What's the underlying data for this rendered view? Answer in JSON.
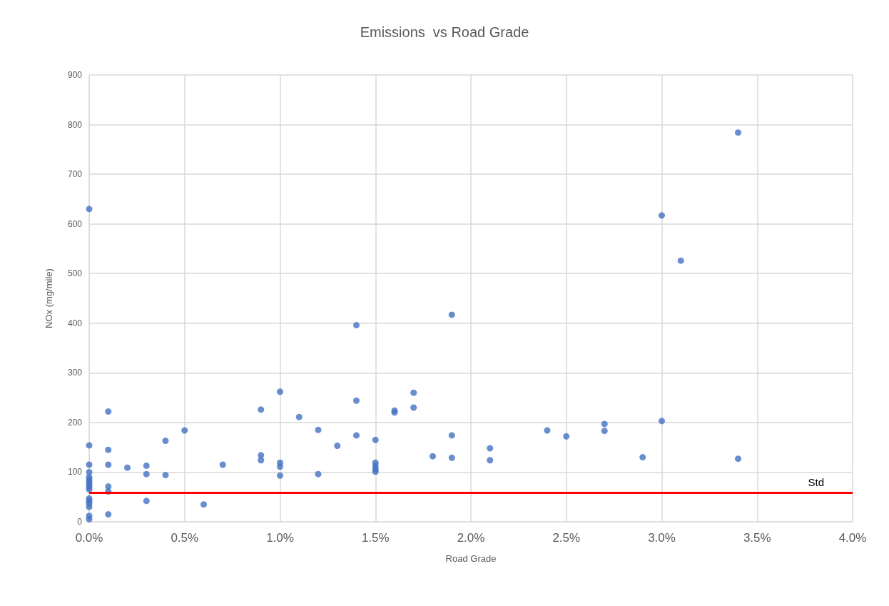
{
  "chart_data": {
    "type": "scatter",
    "title": "Emissions  vs Road Grade",
    "xlabel": "Road Grade",
    "ylabel": "NOx (mg/mile)",
    "series": [
      {
        "color": "#4472c4",
        "x": [
          0,
          0,
          0,
          0,
          0,
          0,
          0,
          0,
          0,
          0,
          0,
          0,
          0,
          0,
          0,
          0,
          0.1,
          0.1,
          0.1,
          0.1,
          0.1,
          0.1,
          0.2,
          0.3,
          0.3,
          0.3,
          0.4,
          0.4,
          0.5,
          0.6,
          0.7,
          0.9,
          0.9,
          0.9,
          1.0,
          1.0,
          1.0,
          1.0,
          1.1,
          1.2,
          1.2,
          1.3,
          1.4,
          1.4,
          1.4,
          1.5,
          1.5,
          1.5,
          1.5,
          1.5,
          1.6,
          1.6,
          1.7,
          1.7,
          1.8,
          1.9,
          1.9,
          1.9,
          2.1,
          2.1,
          2.4,
          2.5,
          2.7,
          2.7,
          2.9,
          3.0,
          3.0,
          3.1,
          3.4,
          3.4
        ],
        "values": [
          630,
          154,
          115,
          100,
          90,
          85,
          80,
          75,
          70,
          65,
          47,
          42,
          37,
          30,
          12,
          5,
          222,
          145,
          115,
          71,
          61,
          15,
          109,
          113,
          96,
          42,
          163,
          94,
          184,
          35,
          115,
          226,
          134,
          124,
          262,
          119,
          111,
          93,
          211,
          185,
          96,
          153,
          396,
          244,
          174,
          165,
          119,
          112,
          106,
          101,
          224,
          220,
          260,
          230,
          132,
          417,
          174,
          129,
          148,
          124,
          184,
          172,
          197,
          183,
          130,
          617,
          203,
          526,
          784,
          127
        ]
      }
    ],
    "xlim": [
      0,
      4
    ],
    "xticks": [
      {
        "value": 0,
        "label": "0.0%"
      },
      {
        "value": 0.5,
        "label": "0.5%"
      },
      {
        "value": 1,
        "label": "1.0%"
      },
      {
        "value": 1.5,
        "label": "1.5%"
      },
      {
        "value": 2,
        "label": "2.0%"
      },
      {
        "value": 2.5,
        "label": "2.5%"
      },
      {
        "value": 3,
        "label": "3.0%"
      },
      {
        "value": 3.5,
        "label": "3.5%"
      },
      {
        "value": 4,
        "label": "4.0%"
      }
    ],
    "ylim": [
      0,
      900
    ],
    "yticks": [
      0,
      100,
      200,
      300,
      400,
      500,
      600,
      700,
      800,
      900
    ],
    "ref_lines": [
      {
        "axis": "y",
        "value": 58,
        "label": "Std",
        "color": "#ff0000",
        "line_style": "solid"
      }
    ],
    "grid": true,
    "marker": "circle"
  }
}
